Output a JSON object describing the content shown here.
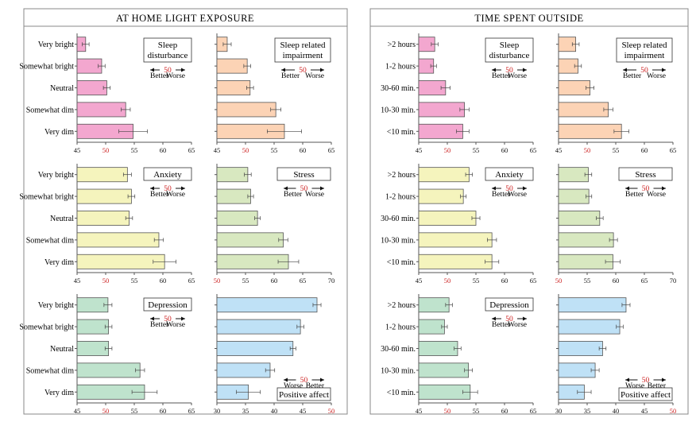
{
  "sections": [
    {
      "title": "AT HOME LIGHT EXPOSURE",
      "categories": [
        "Very bright",
        "Somewhat bright",
        "Neutral",
        "Somewhat dim",
        "Very dim"
      ]
    },
    {
      "title": "TIME SPENT OUTSIDE",
      "categories": [
        ">2 hours",
        "1-2 hours",
        "30-60 min.",
        "10-30 min.",
        "<10 min."
      ]
    }
  ],
  "legend_text": {
    "better": "Better",
    "worse": "Worse",
    "mid": "50"
  },
  "colors": {
    "sleep_disturbance": "#f3a7cf",
    "sleep_impairment": "#fcd3b5",
    "anxiety": "#f5f4bd",
    "stress": "#d8e8c0",
    "depression": "#bfe3cd",
    "positive_affect": "#bfe1f6",
    "fifty_label": "#cc2222",
    "frame": "#888888"
  },
  "chart_data": [
    {
      "type": "bar",
      "section": 0,
      "title": "Sleep disturbance",
      "direction": "lower_better",
      "xlim": [
        45,
        65
      ],
      "ticks": [
        45,
        50,
        55,
        60,
        65
      ],
      "categories": [
        "Very bright",
        "Somewhat bright",
        "Neutral",
        "Somewhat dim",
        "Very dim"
      ],
      "values": [
        46.5,
        49.3,
        50.2,
        53.5,
        54.8
      ],
      "errors": [
        0.6,
        0.6,
        0.6,
        0.8,
        2.5
      ]
    },
    {
      "type": "bar",
      "section": 0,
      "title": "Sleep related impairment",
      "direction": "lower_better",
      "xlim": [
        45,
        65
      ],
      "ticks": [
        45,
        50,
        55,
        60,
        65
      ],
      "categories": [
        "Very bright",
        "Somewhat bright",
        "Neutral",
        "Somewhat dim",
        "Very dim"
      ],
      "values": [
        46.8,
        50.3,
        50.8,
        55.3,
        56.8
      ],
      "errors": [
        0.7,
        0.6,
        0.6,
        0.9,
        3.0
      ]
    },
    {
      "type": "bar",
      "section": 0,
      "title": "Anxiety",
      "direction": "lower_better",
      "xlim": [
        45,
        65
      ],
      "ticks": [
        45,
        50,
        55,
        60,
        65
      ],
      "categories": [
        "Very bright",
        "Somewhat bright",
        "Neutral",
        "Somewhat dim",
        "Very dim"
      ],
      "values": [
        53.8,
        54.5,
        54.1,
        59.3,
        60.3
      ],
      "errors": [
        0.7,
        0.6,
        0.6,
        0.8,
        2.0
      ]
    },
    {
      "type": "bar",
      "section": 0,
      "title": "Stress",
      "direction": "lower_better",
      "xlim": [
        50,
        70
      ],
      "ticks": [
        50,
        55,
        60,
        65,
        70
      ],
      "categories": [
        "Very bright",
        "Somewhat bright",
        "Neutral",
        "Somewhat dim",
        "Very dim"
      ],
      "values": [
        55.4,
        55.9,
        57.1,
        61.6,
        62.5
      ],
      "errors": [
        0.6,
        0.5,
        0.5,
        0.8,
        1.8
      ]
    },
    {
      "type": "bar",
      "section": 0,
      "title": "Depression",
      "direction": "lower_better",
      "xlim": [
        45,
        65
      ],
      "ticks": [
        45,
        50,
        55,
        60,
        65
      ],
      "categories": [
        "Very bright",
        "Somewhat bright",
        "Neutral",
        "Somewhat dim",
        "Very dim"
      ],
      "values": [
        50.4,
        50.5,
        50.5,
        56.0,
        56.8
      ],
      "errors": [
        0.7,
        0.6,
        0.6,
        0.8,
        2.2
      ]
    },
    {
      "type": "bar",
      "section": 0,
      "title": "Positive affect",
      "direction": "higher_better",
      "xlim": [
        30,
        50
      ],
      "ticks": [
        30,
        35,
        40,
        45,
        50
      ],
      "categories": [
        "Very bright",
        "Somewhat bright",
        "Neutral",
        "Somewhat dim",
        "Very dim"
      ],
      "values": [
        47.5,
        44.6,
        43.3,
        39.3,
        35.5
      ],
      "errors": [
        0.7,
        0.6,
        0.5,
        0.8,
        2.1
      ]
    },
    {
      "type": "bar",
      "section": 1,
      "title": "Sleep disturbance",
      "direction": "lower_better",
      "xlim": [
        45,
        65
      ],
      "ticks": [
        45,
        50,
        55,
        60,
        65
      ],
      "categories": [
        ">2 hours",
        "1-2 hours",
        "30-60 min.",
        "10-30 min.",
        "<10 min."
      ],
      "values": [
        47.8,
        47.6,
        49.7,
        53.0,
        52.7
      ],
      "errors": [
        0.6,
        0.5,
        0.8,
        0.8,
        1.1
      ]
    },
    {
      "type": "bar",
      "section": 1,
      "title": "Sleep related impairment",
      "direction": "lower_better",
      "xlim": [
        45,
        65
      ],
      "ticks": [
        45,
        50,
        55,
        60,
        65
      ],
      "categories": [
        ">2 hours",
        "1-2 hours",
        "30-60 min.",
        "10-30 min.",
        "<10 min."
      ],
      "values": [
        48.0,
        48.4,
        50.5,
        53.7,
        56.0
      ],
      "errors": [
        0.6,
        0.6,
        0.7,
        0.8,
        1.3
      ]
    },
    {
      "type": "bar",
      "section": 1,
      "title": "Anxiety",
      "direction": "lower_better",
      "xlim": [
        45,
        65
      ],
      "ticks": [
        45,
        50,
        55,
        60,
        65
      ],
      "categories": [
        ">2 hours",
        "1-2 hours",
        "30-60 min.",
        "10-30 min.",
        "<10 min."
      ],
      "values": [
        53.8,
        52.8,
        55.0,
        57.8,
        57.8
      ],
      "errors": [
        0.6,
        0.5,
        0.7,
        0.8,
        1.2
      ]
    },
    {
      "type": "bar",
      "section": 1,
      "title": "Stress",
      "direction": "lower_better",
      "xlim": [
        50,
        70
      ],
      "ticks": [
        50,
        55,
        60,
        65,
        70
      ],
      "categories": [
        ">2 hours",
        "1-2 hours",
        "30-60 min.",
        "10-30 min.",
        "<10 min."
      ],
      "values": [
        55.2,
        55.3,
        57.2,
        59.6,
        59.5
      ],
      "errors": [
        0.6,
        0.5,
        0.6,
        0.7,
        1.3
      ]
    },
    {
      "type": "bar",
      "section": 1,
      "title": "Depression",
      "direction": "lower_better",
      "xlim": [
        45,
        65
      ],
      "ticks": [
        45,
        50,
        55,
        60,
        65
      ],
      "categories": [
        ">2 hours",
        "1-2 hours",
        "30-60 min.",
        "10-30 min.",
        "<10 min."
      ],
      "values": [
        50.3,
        49.5,
        51.8,
        53.7,
        54.0
      ],
      "errors": [
        0.6,
        0.5,
        0.6,
        0.7,
        1.3
      ]
    },
    {
      "type": "bar",
      "section": 1,
      "title": "Positive affect",
      "direction": "higher_better",
      "xlim": [
        30,
        50
      ],
      "ticks": [
        30,
        35,
        40,
        45,
        50
      ],
      "categories": [
        ">2 hours",
        "1-2 hours",
        "30-60 min.",
        "10-30 min.",
        "<10 min."
      ],
      "values": [
        41.8,
        40.7,
        37.7,
        36.4,
        34.5
      ],
      "errors": [
        0.7,
        0.6,
        0.6,
        0.7,
        1.2
      ]
    }
  ]
}
